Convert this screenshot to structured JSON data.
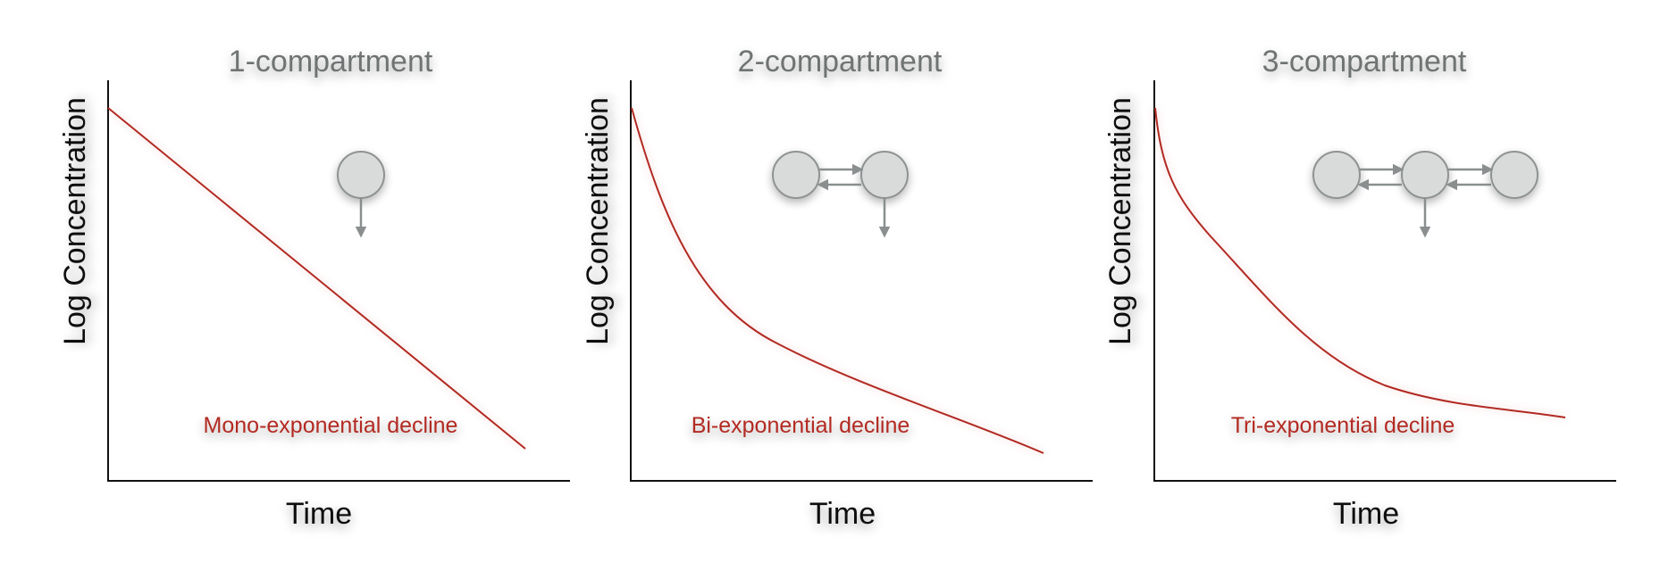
{
  "panels": [
    {
      "title": "1-compartment",
      "xlabel": "Time",
      "ylabel": "Log Concentration",
      "curve_label": "Mono-exponential decline",
      "compartments": 1
    },
    {
      "title": "2-compartment",
      "xlabel": "Time",
      "ylabel": "Log Concentration",
      "curve_label": "Bi-exponential decline",
      "compartments": 2
    },
    {
      "title": "3-compartment",
      "xlabel": "Time",
      "ylabel": "Log Concentration",
      "curve_label": "Tri-exponential decline",
      "compartments": 3
    }
  ],
  "colors": {
    "curve": "#b22a22",
    "title": "#6f7373",
    "axis": "#111111",
    "node_fill": "#d9dbdb",
    "node_stroke": "#8e9292",
    "arrow": "#8a8e8e"
  }
}
